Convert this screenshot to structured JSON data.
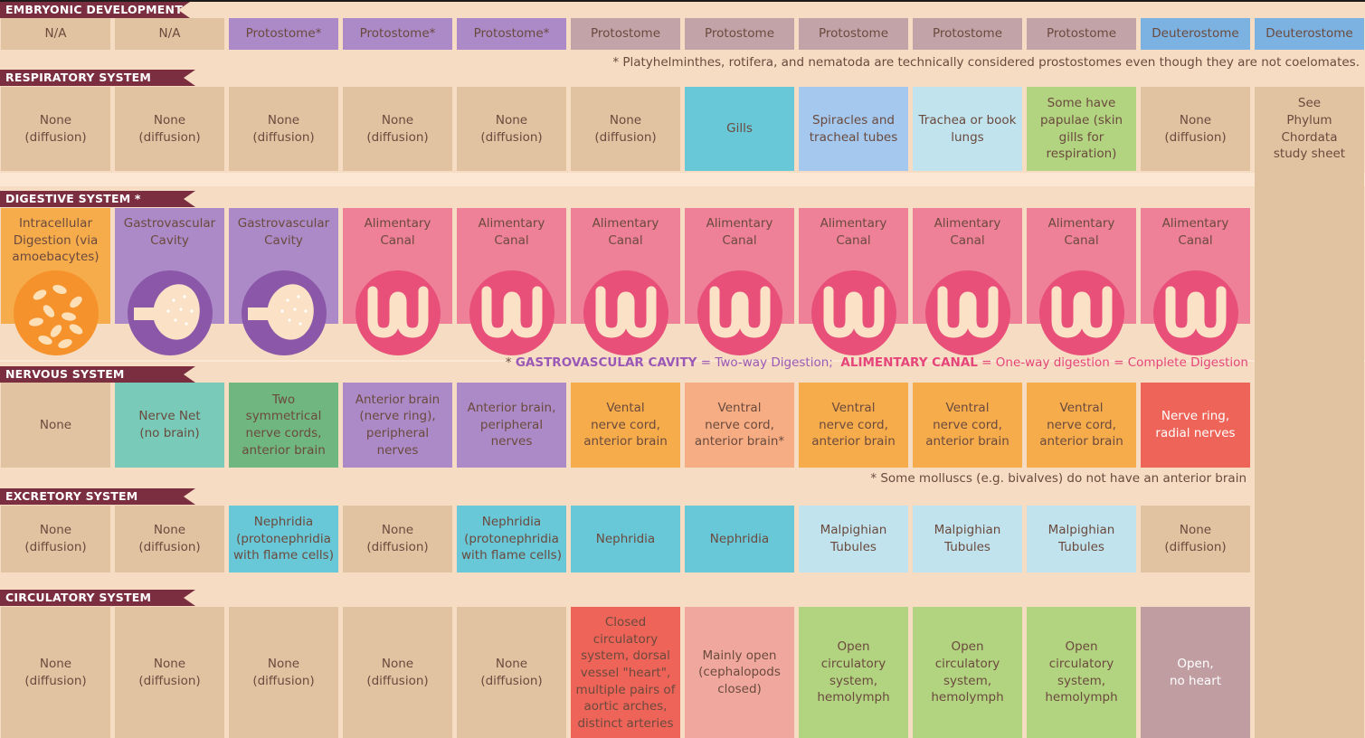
{
  "sections": {
    "embryonic": "EMBRYONIC DEVELOPMENT",
    "respiratory": "RESPIRATORY SYSTEM",
    "digestive": "DIGESTIVE SYSTEM *",
    "nervous": "NERVOUS SYSTEM",
    "excretory": "EXCRETORY SYSTEM",
    "circulatory": "CIRCULATORY SYSTEM"
  },
  "notes": {
    "embryonic": "* Platyhelminthes, rotifera, and nematoda are technically considered prostostomes even though they are not coelomates.",
    "digestive_star": "* ",
    "digestive_gv": "GASTROVASCULAR CAVITY",
    "digestive_gv_def": " = Two-way Digestion;  ",
    "digestive_ac": "ALIMENTARY CANAL",
    "digestive_ac_def": " = One-way digestion = Complete Digestion",
    "nervous": "* Some molluscs (e.g. bivalves) do not have an anterior brain"
  },
  "embryonic": [
    {
      "text": "N/A",
      "color": "#e2c3a1"
    },
    {
      "text": "N/A",
      "color": "#e2c3a1"
    },
    {
      "text": "Protostome*",
      "color": "#ab8ac7"
    },
    {
      "text": "Protostome*",
      "color": "#ab8ac7"
    },
    {
      "text": "Protostome*",
      "color": "#ab8ac7"
    },
    {
      "text": "Protostome",
      "color": "#c2a4a8"
    },
    {
      "text": "Protostome",
      "color": "#c2a4a8"
    },
    {
      "text": "Protostome",
      "color": "#c2a4a8"
    },
    {
      "text": "Protostome",
      "color": "#c2a4a8"
    },
    {
      "text": "Protostome",
      "color": "#c2a4a8"
    },
    {
      "text": "Deuterostome",
      "color": "#7cb2e1"
    },
    {
      "text": "Deuterostome",
      "color": "#7cb2e1"
    }
  ],
  "respiratory": [
    {
      "text": "None\n(diffusion)",
      "color": "#e2c3a1"
    },
    {
      "text": "None\n(diffusion)",
      "color": "#e2c3a1"
    },
    {
      "text": "None\n(diffusion)",
      "color": "#e2c3a1"
    },
    {
      "text": "None\n(diffusion)",
      "color": "#e2c3a1"
    },
    {
      "text": "None\n(diffusion)",
      "color": "#e2c3a1"
    },
    {
      "text": "None\n(diffusion)",
      "color": "#e2c3a1"
    },
    {
      "text": "Gills",
      "color": "#68c8d7"
    },
    {
      "text": "Spiracles and\ntracheal tubes",
      "color": "#a4c8ee"
    },
    {
      "text": "Trachea or book\nlungs",
      "color": "#c0e3ee"
    },
    {
      "text": "Some have\npapulae (skin\ngills for\nrespiration)",
      "color": "#b2d380"
    },
    {
      "text": "None\n(diffusion)",
      "color": "#e2c3a1"
    }
  ],
  "chordata": {
    "text": "See\nPhylum\nChordata\nstudy sheet",
    "color": "#e2c3a1"
  },
  "digestive": [
    {
      "text": "Intracellular\nDigestion (via\namoebacytes)",
      "color": "#f6ac4b",
      "icon": "amoebacyte-icon",
      "iconColor": "#f5922b"
    },
    {
      "text": "Gastrovascular\nCavity",
      "color": "#ab8ac7",
      "icon": "gastrovascular-cavity-icon",
      "iconColor": "#8b57a8"
    },
    {
      "text": "Gastrovascular\nCavity",
      "color": "#ab8ac7",
      "icon": "gastrovascular-cavity-icon",
      "iconColor": "#8b57a8"
    },
    {
      "text": "Alimentary\nCanal",
      "color": "#ee8098",
      "icon": "alimentary-canal-icon",
      "iconColor": "#e8507a"
    },
    {
      "text": "Alimentary\nCanal",
      "color": "#ee8098",
      "icon": "alimentary-canal-icon",
      "iconColor": "#e8507a"
    },
    {
      "text": "Alimentary\nCanal",
      "color": "#ee8098",
      "icon": "alimentary-canal-icon",
      "iconColor": "#e8507a"
    },
    {
      "text": "Alimentary\nCanal",
      "color": "#ee8098",
      "icon": "alimentary-canal-icon",
      "iconColor": "#e8507a"
    },
    {
      "text": "Alimentary\nCanal",
      "color": "#ee8098",
      "icon": "alimentary-canal-icon",
      "iconColor": "#e8507a"
    },
    {
      "text": "Alimentary\nCanal",
      "color": "#ee8098",
      "icon": "alimentary-canal-icon",
      "iconColor": "#e8507a"
    },
    {
      "text": "Alimentary\nCanal",
      "color": "#ee8098",
      "icon": "alimentary-canal-icon",
      "iconColor": "#e8507a"
    },
    {
      "text": "Alimentary\nCanal",
      "color": "#ee8098",
      "icon": "alimentary-canal-icon",
      "iconColor": "#e8507a"
    }
  ],
  "nervous": [
    {
      "text": "None",
      "color": "#e2c3a1"
    },
    {
      "text": "Nerve Net\n(no brain)",
      "color": "#79cab8"
    },
    {
      "text": "Two\nsymmetrical\nnerve cords,\nanterior brain",
      "color": "#70b680"
    },
    {
      "text": "Anterior brain\n(nerve ring),\nperipheral\nnerves",
      "color": "#ab8ac7"
    },
    {
      "text": "Anterior brain,\nperipheral\nnerves",
      "color": "#ab8ac7"
    },
    {
      "text": "Vental\nnerve cord,\nanterior brain",
      "color": "#f6ac4b"
    },
    {
      "text": "Ventral\nnerve cord,\nanterior brain*",
      "color": "#f6ad83"
    },
    {
      "text": "Ventral\nnerve cord,\nanterior brain",
      "color": "#f6ac4b"
    },
    {
      "text": "Ventral\nnerve cord,\nanterior brain",
      "color": "#f6ac4b"
    },
    {
      "text": "Ventral\nnerve cord,\nanterior brain",
      "color": "#f6ac4b"
    },
    {
      "text": "Nerve ring,\nradial nerves",
      "color": "#ee6458",
      "light": true
    }
  ],
  "excretory": [
    {
      "text": "None\n(diffusion)",
      "color": "#e2c3a1"
    },
    {
      "text": "None\n(diffusion)",
      "color": "#e2c3a1"
    },
    {
      "text": "Nephridia\n(protonephridia\nwith flame cells)",
      "color": "#68c8d7"
    },
    {
      "text": "None\n(diffusion)",
      "color": "#e2c3a1"
    },
    {
      "text": "Nephridia\n(protonephridia\nwith flame cells)",
      "color": "#68c8d7"
    },
    {
      "text": "Nephridia",
      "color": "#68c8d7"
    },
    {
      "text": "Nephridia",
      "color": "#68c8d7"
    },
    {
      "text": "Malpighian\nTubules",
      "color": "#c0e3ee"
    },
    {
      "text": "Malpighian\nTubules",
      "color": "#c0e3ee"
    },
    {
      "text": "Malpighian\nTubules",
      "color": "#c0e3ee"
    },
    {
      "text": "None\n(diffusion)",
      "color": "#e2c3a1"
    }
  ],
  "circulatory": [
    {
      "text": "None\n(diffusion)",
      "color": "#e2c3a1"
    },
    {
      "text": "None\n(diffusion)",
      "color": "#e2c3a1"
    },
    {
      "text": "None\n(diffusion)",
      "color": "#e2c3a1"
    },
    {
      "text": "None\n(diffusion)",
      "color": "#e2c3a1"
    },
    {
      "text": "None\n(diffusion)",
      "color": "#e2c3a1"
    },
    {
      "text": "Closed\ncirculatory\nsystem, dorsal\nvessel \"heart\",\nmultiple pairs of\naortic arches,\ndistinct arteries",
      "color": "#ee6458",
      "top": true
    },
    {
      "text": "Mainly open\n(cephalopods\nclosed)",
      "color": "#f0a89e"
    },
    {
      "text": "Open\ncirculatory\nsystem,\nhemolymph",
      "color": "#b2d380"
    },
    {
      "text": "Open\ncirculatory\nsystem,\nhemolymph",
      "color": "#b2d380"
    },
    {
      "text": "Open\ncirculatory\nsystem,\nhemolymph",
      "color": "#b2d380"
    },
    {
      "text": "Open,\nno heart",
      "color": "#c09da1",
      "light": true
    }
  ],
  "colors": {
    "header_bg": "#7a2e40",
    "note_purple": "#9b59b6",
    "note_pink": "#e6457a",
    "page_bg": "#fbe7d3"
  }
}
